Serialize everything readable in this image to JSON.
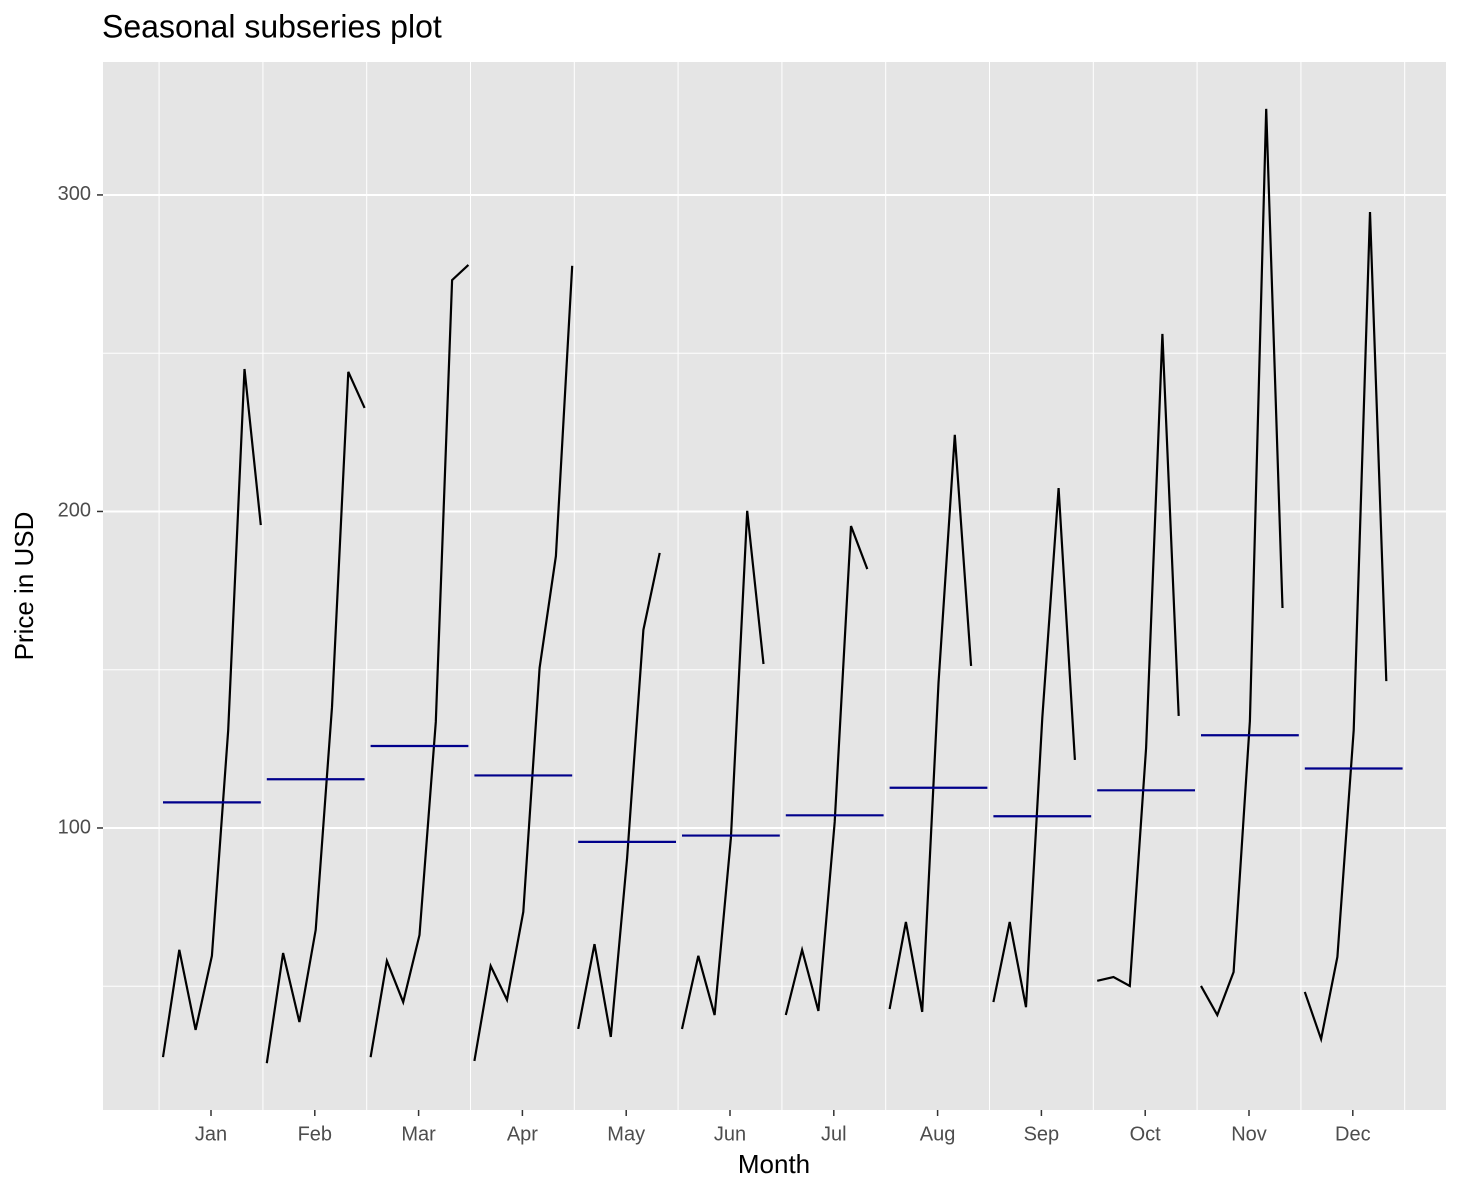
{
  "chart_data": {
    "type": "subseries",
    "title": "Seasonal subseries plot",
    "x_label": "Month",
    "y_label": "Price in USD",
    "categories": [
      "Jan",
      "Feb",
      "Mar",
      "Apr",
      "May",
      "Jun",
      "Jul",
      "Aug",
      "Sep",
      "Oct",
      "Nov",
      "Dec"
    ],
    "line_color": "#000000",
    "mean_color": "#00008b",
    "subseries": [
      {
        "values": [
          27.6,
          61.5,
          36.2,
          59.6,
          130.9,
          245.0,
          195.7
        ],
        "mean": 108.1
      },
      {
        "values": [
          25.7,
          60.5,
          38.7,
          67.8,
          138.2,
          244.1,
          232.7
        ],
        "mean": 115.4
      },
      {
        "values": [
          27.6,
          58.0,
          45.0,
          66.2,
          133.5,
          273.1,
          277.9
        ],
        "mean": 125.9
      },
      {
        "values": [
          26.4,
          56.4,
          45.7,
          73.5,
          150.6,
          185.9,
          277.6
        ],
        "mean": 116.6
      },
      {
        "values": [
          36.5,
          63.3,
          34.0,
          90.5,
          162.6,
          186.9
        ],
        "mean": 95.6
      },
      {
        "values": [
          36.5,
          59.6,
          40.9,
          96.8,
          200.2,
          151.8
        ],
        "mean": 97.6
      },
      {
        "values": [
          40.9,
          61.5,
          42.2,
          101.9,
          195.4,
          181.8
        ],
        "mean": 104.0
      },
      {
        "values": [
          42.8,
          70.3,
          41.9,
          145.8,
          224.2,
          151.2
        ],
        "mean": 112.7
      },
      {
        "values": [
          45.0,
          70.3,
          43.4,
          134.8,
          207.4,
          121.5
        ],
        "mean": 103.7
      },
      {
        "values": [
          51.7,
          52.9,
          50.1,
          125.3,
          256.1,
          135.4
        ],
        "mean": 111.9
      },
      {
        "values": [
          50.1,
          40.9,
          54.5,
          133.8,
          327.2,
          169.5
        ],
        "mean": 129.3
      },
      {
        "values": [
          48.2,
          33.3,
          59.3,
          130.9,
          294.6,
          146.4
        ],
        "mean": 118.8
      }
    ],
    "ylim": [
      10.9,
      342
    ],
    "yticks": [
      100,
      200,
      300
    ],
    "minor_yticks": [
      50,
      150,
      250
    ],
    "grid": true
  }
}
